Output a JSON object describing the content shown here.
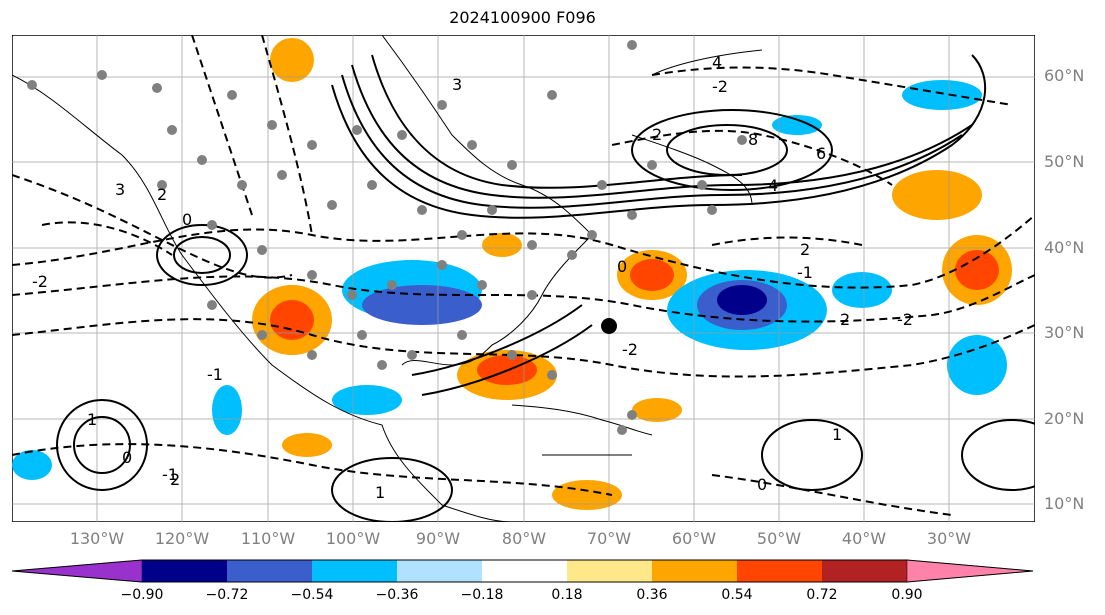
{
  "title": "2024100900 F096",
  "map": {
    "lat_labels": [
      "60°N",
      "50°N",
      "40°N",
      "30°N",
      "20°N",
      "10°N"
    ],
    "lon_labels": [
      "130°W",
      "120°W",
      "110°W",
      "100°W",
      "90°W",
      "80°W",
      "70°W",
      "60°W",
      "50°W",
      "40°W",
      "30°W"
    ],
    "contour_labels": [
      "4",
      "-2",
      "3",
      "2",
      "8",
      "6",
      "4",
      "2",
      "-1",
      "-2",
      "0",
      "-2",
      "3",
      "2",
      "-2",
      "1",
      "-1",
      "0",
      "1",
      "2",
      "0",
      "2",
      "-1",
      "0",
      "1"
    ],
    "marker_color": "#808080",
    "center_marker_color": "#000000"
  },
  "colorbar": {
    "ticks": [
      "−0.90",
      "−0.72",
      "−0.54",
      "−0.36",
      "−0.18",
      "0.18",
      "0.36",
      "0.54",
      "0.72",
      "0.90"
    ],
    "colors": [
      "#9932cc",
      "#00008b",
      "#3a5fcd",
      "#00bfff",
      "#b0e2ff",
      "#ffffff",
      "#ffe88a",
      "#ffa500",
      "#ff4500",
      "#b22222",
      "#ff82ab"
    ]
  }
}
